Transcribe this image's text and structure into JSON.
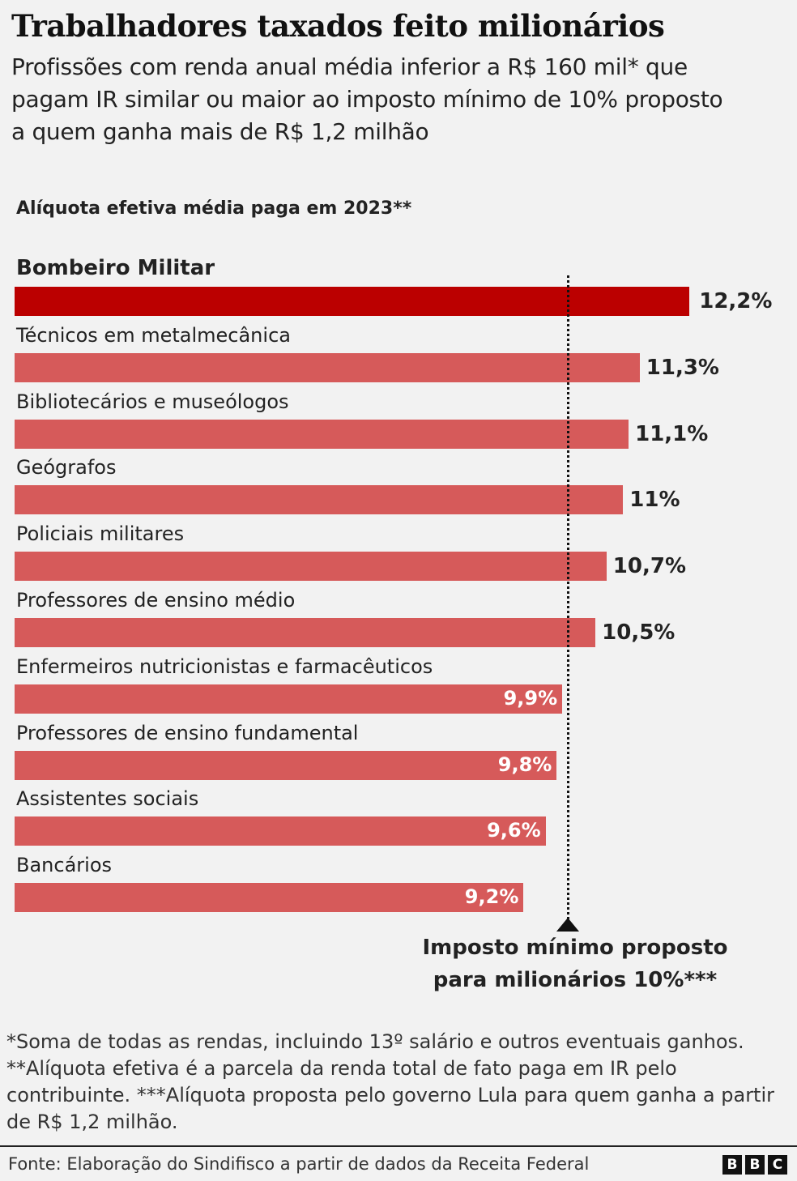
{
  "chart_data": {
    "type": "bar",
    "orientation": "horizontal",
    "title": "Trabalhadores taxados feito milionários",
    "subtitle": "Profissões com renda anual média inferior a R$ 160 mil* que pagam IR similar ou maior ao imposto mínimo de 10% proposto a quem ganha mais de R$ 1,2 milhão",
    "axis_title": "Alíquota efetiva média paga em 2023**",
    "categories": [
      "Bombeiro Militar",
      "Técnicos em metalmecânica",
      "Bibliotecários e museólogos",
      "Geógrafos",
      "Policiais militares",
      "Professores de ensino médio",
      "Enfermeiros nutricionistas e farmacêuticos",
      "Professores de ensino fundamental",
      "Assistentes sociais",
      "Bancários"
    ],
    "values": [
      12.2,
      11.3,
      11.1,
      11,
      10.7,
      10.5,
      9.9,
      9.8,
      9.6,
      9.2
    ],
    "value_labels": [
      "12,2%",
      "11,3%",
      "11,1%",
      "11%",
      "10,7%",
      "10,5%",
      "9,9%",
      "9,8%",
      "9,6%",
      "9,2%"
    ],
    "highlighted_category": "Bombeiro Militar",
    "colors": {
      "highlight": "#bb0000",
      "bar": "#d65a5a",
      "reference_line": "#111111"
    },
    "reference_line": {
      "value": 10,
      "label": "Imposto mínimo proposto para milionários 10%***",
      "style": "dotted"
    },
    "grid": false,
    "legend": "none",
    "xlim": [
      0,
      12.2
    ]
  },
  "footnotes": "*Soma de todas as rendas, incluindo 13º salário e outros eventuais ganhos. **Alíquota efetiva é a parcela da renda total de fato paga em IR pelo contribuinte. ***Alíquota proposta pelo governo Lula para quem ganha a partir de R$ 1,2 milhão.",
  "source": "Fonte: Elaboração do Sindifisco a partir de dados da Receita Federal",
  "logo": [
    "B",
    "B",
    "C"
  ]
}
